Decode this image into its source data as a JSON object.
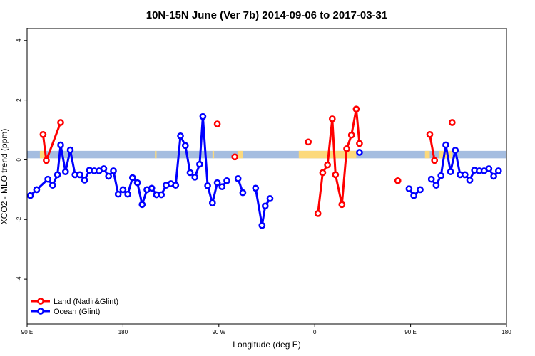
{
  "chart_data": {
    "type": "line",
    "title": "10N-15N June (Ver 7b)   2014-09-06 to 2017-03-31",
    "xlabel": "Longitude (deg E)",
    "ylabel": "XCO2 - MLO trend (ppm)",
    "xlim": [
      90,
      390
    ],
    "ylim": [
      -5.5,
      4.4
    ],
    "x_ticks": [
      {
        "value": 90,
        "label": "90 E"
      },
      {
        "value": 150,
        "label": "180"
      },
      {
        "value": 210,
        "label": "90 W"
      },
      {
        "value": 270,
        "label": "0"
      },
      {
        "value": 330,
        "label": "90 E"
      },
      {
        "value": 390,
        "label": "180"
      }
    ],
    "y_ticks": [
      {
        "value": -4,
        "label": "-4"
      },
      {
        "value": -2,
        "label": "-2"
      },
      {
        "value": 0,
        "label": "0"
      },
      {
        "value": 2,
        "label": "2"
      },
      {
        "value": 4,
        "label": "4"
      }
    ],
    "legend_position": "bottom-left",
    "band": {
      "y_range": [
        0.05,
        0.3
      ],
      "color": "#a5bde0",
      "land_color": "#fcd97c",
      "land_segments": [
        [
          98,
          102
        ],
        [
          170,
          171
        ],
        [
          206,
          207
        ],
        [
          222,
          225
        ],
        [
          260,
          296
        ],
        [
          339,
          342
        ],
        [
          348,
          356
        ]
      ]
    },
    "series": [
      {
        "name": "Land (Nadir&Glint)",
        "color": "#ff0000",
        "points": [
          [
            100,
            0.85
          ],
          [
            102,
            -0.02
          ],
          [
            111,
            1.25
          ],
          null,
          [
            209,
            1.2
          ],
          null,
          [
            220,
            0.1
          ],
          null,
          [
            266,
            0.6
          ],
          null,
          [
            272,
            -1.8
          ],
          [
            275,
            -0.43
          ],
          [
            278,
            -0.17
          ],
          [
            281,
            1.37
          ],
          [
            283,
            -0.5
          ],
          [
            287,
            -1.5
          ],
          [
            290,
            0.37
          ],
          [
            293,
            0.83
          ],
          [
            296,
            1.7
          ],
          [
            298,
            0.55
          ],
          null,
          [
            322,
            -0.7
          ],
          null,
          [
            342,
            0.85
          ],
          [
            345,
            -0.02
          ],
          null,
          [
            356,
            1.25
          ]
        ]
      },
      {
        "name": "Ocean (Glint)",
        "color": "#0000ff",
        "points": [
          [
            92,
            -1.2
          ],
          [
            96,
            -1.0
          ],
          [
            103,
            -0.65
          ],
          [
            106,
            -0.85
          ],
          [
            109,
            -0.5
          ],
          [
            111,
            0.5
          ],
          [
            114,
            -0.4
          ],
          [
            117,
            0.33
          ],
          [
            120,
            -0.5
          ],
          [
            123,
            -0.5
          ],
          [
            126,
            -0.68
          ],
          [
            129,
            -0.35
          ],
          [
            132,
            -0.37
          ],
          [
            135,
            -0.37
          ],
          [
            138,
            -0.3
          ],
          [
            141,
            -0.55
          ],
          [
            144,
            -0.37
          ],
          [
            147,
            -1.15
          ],
          [
            150,
            -1.0
          ],
          [
            153,
            -1.15
          ],
          [
            156,
            -0.6
          ],
          [
            159,
            -0.77
          ],
          [
            162,
            -1.5
          ],
          [
            165,
            -1.0
          ],
          [
            168,
            -0.95
          ],
          [
            171,
            -1.17
          ],
          [
            174,
            -1.17
          ],
          [
            177,
            -0.85
          ],
          [
            180,
            -0.8
          ],
          [
            183,
            -0.85
          ],
          [
            186,
            0.8
          ],
          [
            189,
            0.48
          ],
          [
            192,
            -0.43
          ],
          [
            195,
            -0.58
          ],
          [
            198,
            -0.15
          ],
          [
            200,
            1.45
          ],
          [
            203,
            -0.87
          ],
          [
            206,
            -1.45
          ],
          [
            209,
            -0.77
          ],
          [
            212,
            -0.9
          ],
          [
            215,
            -0.7
          ],
          null,
          [
            222,
            -0.63
          ],
          [
            225,
            -1.1
          ],
          null,
          [
            233,
            -0.95
          ],
          [
            237,
            -2.2
          ],
          [
            239,
            -1.55
          ],
          [
            242,
            -1.3
          ],
          null,
          [
            298,
            0.25
          ],
          null,
          [
            329,
            -0.97
          ],
          [
            332,
            -1.2
          ],
          [
            336,
            -1.0
          ],
          null,
          [
            343,
            -0.65
          ],
          [
            346,
            -0.85
          ],
          [
            349,
            -0.53
          ],
          [
            352,
            0.5
          ],
          [
            355,
            -0.4
          ],
          [
            358,
            0.32
          ],
          [
            361,
            -0.5
          ],
          [
            364,
            -0.5
          ],
          [
            367,
            -0.68
          ],
          [
            370,
            -0.35
          ],
          [
            373,
            -0.37
          ],
          [
            376,
            -0.37
          ],
          [
            379,
            -0.3
          ],
          [
            382,
            -0.55
          ],
          [
            385,
            -0.37
          ]
        ]
      }
    ]
  }
}
